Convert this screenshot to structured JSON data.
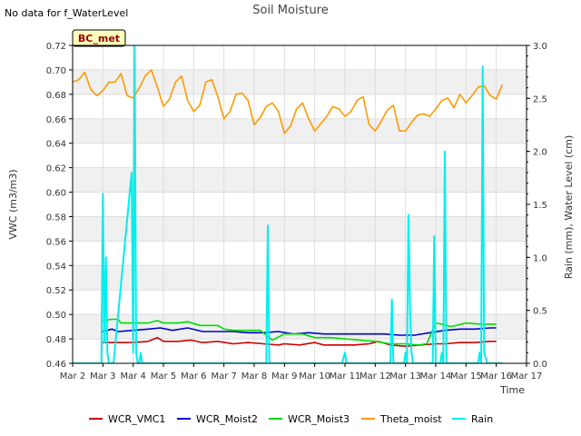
{
  "chart_data": {
    "type": "line",
    "title": "Soil Moisture",
    "no_data_note": "No data for f_WaterLevel",
    "station_badge": "BC_met",
    "xlabel": "Time",
    "ylabel": "VWC (m3/m3)",
    "y2label": "Rain (mm), Water Level (cm)",
    "xlim": [
      2,
      17
    ],
    "ylim": [
      0.46,
      0.72
    ],
    "y2lim": [
      0.0,
      3.0
    ],
    "x_ticks": [
      2,
      3,
      4,
      5,
      6,
      7,
      8,
      9,
      10,
      11,
      12,
      13,
      14,
      15,
      16,
      17
    ],
    "x_tick_labels": [
      "Mar 2",
      "Mar 3",
      "Mar 4",
      "Mar 5",
      "Mar 6",
      "Mar 7",
      "Mar 8",
      "Mar 9",
      "Mar 10",
      "Mar 11",
      "Mar 12",
      "Mar 13",
      "Mar 14",
      "Mar 15",
      "Mar 16",
      "Mar 17"
    ],
    "y_ticks": [
      0.46,
      0.48,
      0.5,
      0.52,
      0.54,
      0.56,
      0.58,
      0.6,
      0.62,
      0.64,
      0.66,
      0.68,
      0.7,
      0.72
    ],
    "y_tick_labels": [
      "0.46",
      "0.48",
      "0.50",
      "0.52",
      "0.54",
      "0.56",
      "0.58",
      "0.60",
      "0.62",
      "0.64",
      "0.66",
      "0.68",
      "0.70",
      "0.72"
    ],
    "y2_ticks": [
      0.0,
      0.5,
      1.0,
      1.5,
      2.0,
      2.5,
      3.0
    ],
    "y2_tick_labels": [
      "0.0",
      "0.5",
      "1.0",
      "1.5",
      "2.0",
      "2.5",
      "3.0"
    ],
    "legend_position": "bottom",
    "series": [
      {
        "name": "WCR_VMC1",
        "color": "#cc0000",
        "axis": "left",
        "x": [
          3.0,
          3.5,
          4.0,
          4.5,
          4.8,
          5.0,
          5.5,
          5.9,
          6.3,
          6.8,
          7.3,
          7.8,
          8.3,
          8.8,
          9.0,
          9.5,
          10.0,
          10.3,
          10.8,
          11.3,
          11.8,
          12.1,
          12.5,
          13.0,
          13.5,
          14.0,
          14.3,
          14.8,
          15.3,
          15.8,
          16.0
        ],
        "y": [
          0.477,
          0.477,
          0.477,
          0.478,
          0.481,
          0.478,
          0.478,
          0.479,
          0.477,
          0.478,
          0.476,
          0.477,
          0.476,
          0.475,
          0.476,
          0.475,
          0.477,
          0.475,
          0.475,
          0.475,
          0.476,
          0.478,
          0.475,
          0.474,
          0.475,
          0.476,
          0.476,
          0.477,
          0.477,
          0.478,
          0.478
        ]
      },
      {
        "name": "WCR_Moist2",
        "color": "#0000cc",
        "axis": "left",
        "x": [
          3.0,
          3.3,
          3.5,
          4.0,
          4.5,
          4.9,
          5.3,
          5.8,
          6.3,
          6.8,
          7.3,
          7.8,
          8.3,
          8.8,
          9.3,
          9.8,
          10.3,
          10.8,
          11.3,
          11.8,
          12.3,
          12.8,
          13.3,
          13.8,
          14.3,
          14.8,
          15.3,
          15.8,
          16.0
        ],
        "y": [
          0.486,
          0.488,
          0.486,
          0.487,
          0.488,
          0.489,
          0.487,
          0.489,
          0.486,
          0.486,
          0.486,
          0.485,
          0.485,
          0.486,
          0.484,
          0.485,
          0.484,
          0.484,
          0.484,
          0.484,
          0.484,
          0.483,
          0.483,
          0.485,
          0.487,
          0.488,
          0.488,
          0.489,
          0.489
        ]
      },
      {
        "name": "WCR_Moist3",
        "color": "#00dd00",
        "axis": "left",
        "x": [
          3.0,
          3.3,
          3.5,
          3.6,
          4.0,
          4.5,
          4.8,
          5.0,
          5.5,
          5.8,
          6.2,
          6.8,
          7.0,
          7.3,
          7.8,
          8.2,
          8.6,
          9.0,
          9.3,
          9.6,
          10.0,
          10.5,
          11.0,
          11.5,
          12.0,
          12.5,
          12.8,
          13.0,
          13.4,
          13.7,
          14.0,
          14.2,
          14.5,
          15.0,
          15.5,
          16.0
        ],
        "y": [
          0.495,
          0.496,
          0.496,
          0.493,
          0.493,
          0.493,
          0.495,
          0.493,
          0.493,
          0.494,
          0.491,
          0.491,
          0.488,
          0.487,
          0.487,
          0.487,
          0.479,
          0.484,
          0.484,
          0.484,
          0.481,
          0.481,
          0.48,
          0.479,
          0.478,
          0.476,
          0.476,
          0.476,
          0.475,
          0.476,
          0.493,
          0.492,
          0.49,
          0.493,
          0.492,
          0.492
        ]
      },
      {
        "name": "Theta_moist",
        "color": "#ff9900",
        "axis": "left",
        "x": [
          2.0,
          2.2,
          2.4,
          2.6,
          2.8,
          3.0,
          3.2,
          3.4,
          3.6,
          3.8,
          4.0,
          4.2,
          4.4,
          4.6,
          4.8,
          5.0,
          5.2,
          5.4,
          5.6,
          5.8,
          6.0,
          6.2,
          6.4,
          6.6,
          6.8,
          7.0,
          7.2,
          7.4,
          7.6,
          7.8,
          8.0,
          8.2,
          8.4,
          8.6,
          8.8,
          9.0,
          9.2,
          9.4,
          9.6,
          9.8,
          10.0,
          10.2,
          10.4,
          10.6,
          10.8,
          11.0,
          11.2,
          11.4,
          11.6,
          11.8,
          12.0,
          12.2,
          12.4,
          12.6,
          12.8,
          13.0,
          13.2,
          13.4,
          13.6,
          13.8,
          14.0,
          14.2,
          14.4,
          14.6,
          14.8,
          15.0,
          15.2,
          15.4,
          15.6,
          15.8,
          16.0,
          16.2
        ],
        "y": [
          0.69,
          0.692,
          0.698,
          0.684,
          0.679,
          0.683,
          0.69,
          0.69,
          0.697,
          0.679,
          0.677,
          0.685,
          0.695,
          0.7,
          0.686,
          0.67,
          0.676,
          0.69,
          0.695,
          0.675,
          0.666,
          0.671,
          0.69,
          0.692,
          0.678,
          0.66,
          0.666,
          0.68,
          0.681,
          0.675,
          0.655,
          0.661,
          0.67,
          0.673,
          0.666,
          0.648,
          0.654,
          0.668,
          0.673,
          0.66,
          0.65,
          0.656,
          0.662,
          0.67,
          0.668,
          0.662,
          0.666,
          0.675,
          0.678,
          0.655,
          0.65,
          0.658,
          0.667,
          0.671,
          0.65,
          0.65,
          0.657,
          0.663,
          0.664,
          0.662,
          0.668,
          0.675,
          0.677,
          0.669,
          0.68,
          0.673,
          0.679,
          0.686,
          0.687,
          0.679,
          0.676,
          0.688
        ]
      },
      {
        "name": "Rain",
        "color": "#00eeee",
        "axis": "right",
        "x": [
          2.0,
          2.95,
          3.0,
          3.05,
          3.1,
          3.15,
          3.2,
          3.25,
          3.3,
          3.35,
          3.95,
          4.0,
          4.05,
          4.1,
          4.15,
          4.2,
          4.25,
          4.3,
          4.35,
          4.4,
          8.4,
          8.45,
          8.5,
          8.55,
          8.6,
          10.9,
          11.0,
          11.05,
          12.5,
          12.55,
          12.6,
          12.95,
          13.0,
          13.05,
          13.1,
          13.15,
          13.2,
          13.25,
          13.3,
          13.35,
          13.9,
          13.95,
          14.0,
          14.05,
          14.1,
          14.15,
          14.2,
          14.25,
          14.3,
          14.35,
          14.4,
          14.45,
          14.5,
          14.55,
          14.6,
          14.65,
          14.7,
          14.75,
          14.8,
          14.85,
          14.9,
          15.4,
          15.45,
          15.5,
          15.55,
          15.6,
          15.7,
          15.75,
          15.8,
          15.85,
          15.9,
          15.95,
          16.0,
          16.05,
          16.1,
          16.15,
          16.2
        ],
        "y": [
          0.0,
          0.0,
          1.6,
          0.2,
          1.0,
          0.1,
          0.0,
          0.0,
          0.0,
          0.0,
          1.8,
          0.1,
          3.0,
          0.1,
          0.0,
          0.0,
          0.1,
          0.0,
          0.0,
          0.0,
          0.0,
          1.3,
          0.0,
          0.0,
          0.0,
          0.0,
          0.1,
          0.0,
          0.0,
          0.6,
          0.0,
          0.0,
          0.1,
          0.0,
          1.4,
          0.5,
          0.1,
          0.0,
          0.0,
          0.0,
          0.0,
          1.2,
          0.0,
          0.0,
          0.0,
          0.0,
          0.1,
          0.0,
          2.0,
          0.0,
          0.0,
          0.0,
          0.0,
          0.0,
          0.0,
          0.0,
          0.0,
          0.0,
          0.0,
          0.0,
          0.0,
          0.0,
          0.1,
          0.0,
          2.8,
          0.1,
          0.0,
          0.0,
          0.0,
          0.0,
          0.0,
          0.0,
          0.0,
          0.0,
          0.0,
          0.0,
          0.0
        ]
      }
    ]
  }
}
